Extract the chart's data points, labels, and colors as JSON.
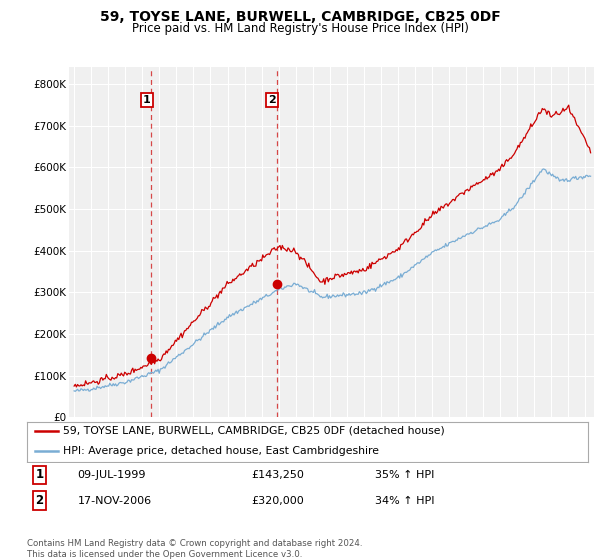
{
  "title": "59, TOYSE LANE, BURWELL, CAMBRIDGE, CB25 0DF",
  "subtitle": "Price paid vs. HM Land Registry's House Price Index (HPI)",
  "legend_line1": "59, TOYSE LANE, BURWELL, CAMBRIDGE, CB25 0DF (detached house)",
  "legend_line2": "HPI: Average price, detached house, East Cambridgeshire",
  "footnote": "Contains HM Land Registry data © Crown copyright and database right 2024.\nThis data is licensed under the Open Government Licence v3.0.",
  "transaction1_date": "09-JUL-1999",
  "transaction1_price": "£143,250",
  "transaction1_hpi": "35% ↑ HPI",
  "transaction2_date": "17-NOV-2006",
  "transaction2_price": "£320,000",
  "transaction2_hpi": "34% ↑ HPI",
  "transaction1_x": 1999.52,
  "transaction1_y": 143250,
  "transaction2_x": 2006.88,
  "transaction2_y": 320000,
  "vline1_x": 1999.52,
  "vline2_x": 2006.88,
  "price_line_color": "#cc0000",
  "hpi_line_color": "#7aadd4",
  "vline_color": "#cc0000",
  "background_color": "#f0f0f0",
  "ylim": [
    0,
    840000
  ],
  "xlim_start": 1994.7,
  "xlim_end": 2025.5,
  "yticks": [
    0,
    100000,
    200000,
    300000,
    400000,
    500000,
    600000,
    700000,
    800000
  ],
  "ytick_labels": [
    "£0",
    "£100K",
    "£200K",
    "£300K",
    "£400K",
    "£500K",
    "£600K",
    "£700K",
    "£800K"
  ],
  "xticks": [
    1995,
    1996,
    1997,
    1998,
    1999,
    2000,
    2001,
    2002,
    2003,
    2004,
    2005,
    2006,
    2007,
    2008,
    2009,
    2010,
    2011,
    2012,
    2013,
    2014,
    2015,
    2016,
    2017,
    2018,
    2019,
    2020,
    2021,
    2022,
    2023,
    2024,
    2025
  ],
  "title_fontsize": 10,
  "subtitle_fontsize": 8.5
}
